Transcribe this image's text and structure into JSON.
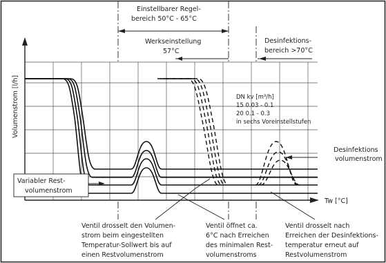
{
  "header": {
    "adjustable_range": [
      "Einstellbarer Regel-",
      "bereich 50°C - 65°C"
    ],
    "factory_setting": [
      "Werkseinstellung",
      "57°C"
    ],
    "disinfection_range": [
      "Desinfektions-",
      "bereich >70°C"
    ]
  },
  "axes": {
    "y_label": "Volumenstrom [l/h]",
    "x_label": "Tw [°C]"
  },
  "table": {
    "lines": [
      "DN    kv [m³/h]",
      "15    0.03 - 0.1",
      "20    0.1 - 0.3",
      "in sechs Voreinstellstufen"
    ]
  },
  "labels": {
    "variable_residual": [
      "Variabler Rest-",
      "volumenstrom"
    ],
    "disinfection_flow": [
      "Desinfektions",
      "volumenstrom"
    ]
  },
  "notes": {
    "note1": [
      "Ventil drosselt den Volumen-",
      "strom beim eingestellten",
      "Temperatur-Sollwert bis auf",
      "einen Restvolumenstrom"
    ],
    "note2": [
      "Ventil öffnet ca.",
      "6°C nach Erreichen",
      "des minimalen Rest-",
      "volumenstroms"
    ],
    "note3": [
      "Ventil drosselt nach",
      "Erreichen der Desinfektions-",
      "temperatur erneut auf",
      "Restvolumenstrom"
    ]
  }
}
